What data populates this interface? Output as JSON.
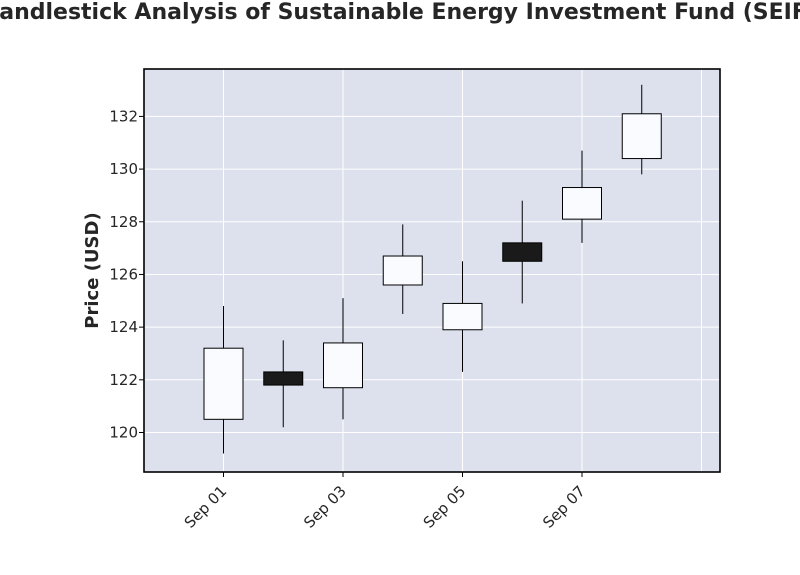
{
  "chart_data": {
    "type": "candlestick",
    "title": "Candlestick Analysis of Sustainable Energy Investment Fund (SEIF)",
    "ylabel": "Price (USD)",
    "xlabel": "",
    "ylim": [
      118.5,
      133.8
    ],
    "yticks": [
      120,
      122,
      124,
      126,
      128,
      130,
      132
    ],
    "xticks": [
      {
        "day": 1,
        "label": "Sep 01"
      },
      {
        "day": 3,
        "label": "Sep 03"
      },
      {
        "day": 5,
        "label": "Sep 05"
      },
      {
        "day": 7,
        "label": "Sep 07"
      }
    ],
    "grid": true,
    "colors": {
      "up": "#f9fbff",
      "down": "#1a1a1a",
      "plot_background": "#dde1ee",
      "grid": "#ffffff",
      "frame": "#000000"
    },
    "candles": [
      {
        "date": "Sep 01",
        "day": 1,
        "open": 120.5,
        "high": 124.8,
        "low": 119.2,
        "close": 123.2
      },
      {
        "date": "Sep 02",
        "day": 2,
        "open": 122.3,
        "high": 123.5,
        "low": 120.2,
        "close": 121.8
      },
      {
        "date": "Sep 03",
        "day": 3,
        "open": 121.7,
        "high": 125.1,
        "low": 120.5,
        "close": 123.4
      },
      {
        "date": "Sep 04",
        "day": 4,
        "open": 125.6,
        "high": 127.9,
        "low": 124.5,
        "close": 126.7
      },
      {
        "date": "Sep 05",
        "day": 5,
        "open": 123.9,
        "high": 126.5,
        "low": 122.3,
        "close": 124.9
      },
      {
        "date": "Sep 06",
        "day": 6,
        "open": 127.2,
        "high": 128.8,
        "low": 124.9,
        "close": 126.5
      },
      {
        "date": "Sep 07",
        "day": 7,
        "open": 128.1,
        "high": 130.7,
        "low": 127.2,
        "close": 129.3
      },
      {
        "date": "Sep 08",
        "day": 8,
        "open": 130.4,
        "high": 133.2,
        "low": 129.8,
        "close": 132.1
      }
    ]
  }
}
